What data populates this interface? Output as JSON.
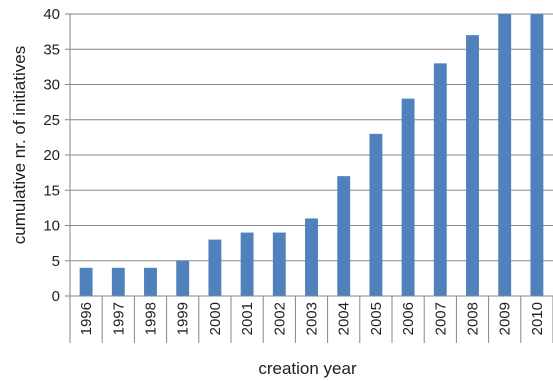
{
  "chart_data": {
    "type": "bar",
    "title": "",
    "xlabel": "creation year",
    "ylabel": "cumulative nr. of initiatives",
    "categories": [
      "1996",
      "1997",
      "1998",
      "1999",
      "2000",
      "2001",
      "2002",
      "2003",
      "2004",
      "2005",
      "2006",
      "2007",
      "2008",
      "2009",
      "2010"
    ],
    "values": [
      4,
      4,
      4,
      5,
      8,
      9,
      9,
      11,
      17,
      23,
      28,
      33,
      37,
      40,
      40
    ],
    "ylim": [
      0,
      40
    ],
    "yticks": [
      "0",
      "5",
      "10",
      "15",
      "20",
      "25",
      "30",
      "35",
      "40"
    ],
    "grid": true,
    "legend": "none",
    "colors": {
      "bar": "#4F81BD",
      "grid": "#868686",
      "axis": "#868686",
      "text": "#1f1f1f"
    }
  }
}
